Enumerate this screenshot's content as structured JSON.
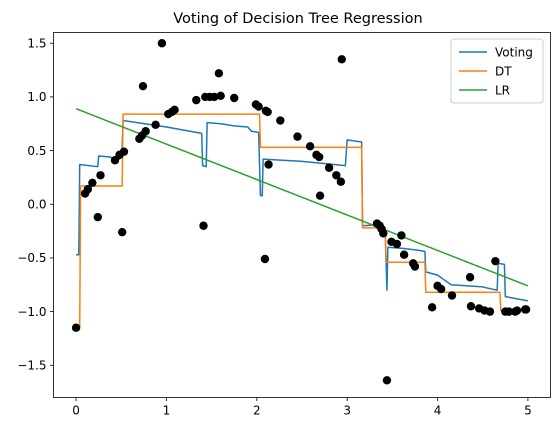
{
  "chart_data": {
    "type": "line",
    "title": "Voting of Decision Tree Regression",
    "xlabel": "",
    "ylabel": "",
    "xlim": [
      -0.25,
      5.25
    ],
    "ylim": [
      -1.8,
      1.6
    ],
    "xticks": [
      0,
      1,
      2,
      3,
      4,
      5
    ],
    "xtick_labels": [
      "0",
      "1",
      "2",
      "3",
      "4",
      "5"
    ],
    "yticks": [
      -1.5,
      -1.0,
      -0.5,
      0.0,
      0.5,
      1.0,
      1.5
    ],
    "ytick_labels": [
      "−1.5",
      "−1.0",
      "−0.5",
      "0.0",
      "0.5",
      "1.0",
      "1.5"
    ],
    "grid": false,
    "legend_position": "top-right",
    "series": [
      {
        "name": "Voting",
        "color": "#1f77b4",
        "points": [
          [
            0.0,
            -0.47
          ],
          [
            0.03,
            -0.47
          ],
          [
            0.04,
            0.37
          ],
          [
            0.24,
            0.35
          ],
          [
            0.25,
            0.45
          ],
          [
            0.38,
            0.44
          ],
          [
            0.4,
            0.43
          ],
          [
            0.48,
            0.42
          ],
          [
            0.51,
            0.53
          ],
          [
            0.52,
            0.78
          ],
          [
            1.0,
            0.72
          ],
          [
            1.39,
            0.66
          ],
          [
            1.4,
            0.36
          ],
          [
            1.44,
            0.35
          ],
          [
            1.45,
            0.76
          ],
          [
            1.6,
            0.75
          ],
          [
            1.75,
            0.73
          ],
          [
            1.9,
            0.72
          ],
          [
            1.94,
            0.68
          ],
          [
            2.02,
            0.67
          ],
          [
            2.04,
            0.08
          ],
          [
            2.06,
            0.08
          ],
          [
            2.07,
            0.42
          ],
          [
            2.5,
            0.4
          ],
          [
            2.98,
            0.36
          ],
          [
            3.0,
            0.6
          ],
          [
            3.16,
            0.58
          ],
          [
            3.17,
            -0.2
          ],
          [
            3.38,
            -0.19
          ],
          [
            3.42,
            -0.22
          ],
          [
            3.44,
            -0.8
          ],
          [
            3.45,
            -0.4
          ],
          [
            3.6,
            -0.41
          ],
          [
            3.8,
            -0.43
          ],
          [
            3.86,
            -0.44
          ],
          [
            3.87,
            -0.63
          ],
          [
            4.0,
            -0.66
          ],
          [
            4.1,
            -0.72
          ],
          [
            4.15,
            -0.75
          ],
          [
            4.5,
            -0.77
          ],
          [
            4.6,
            -0.79
          ],
          [
            4.66,
            -0.8
          ],
          [
            4.67,
            -0.55
          ],
          [
            4.74,
            -0.56
          ],
          [
            4.75,
            -0.86
          ],
          [
            5.0,
            -0.9
          ]
        ]
      },
      {
        "name": "DT",
        "color": "#ff7f0e",
        "points": [
          [
            0.0,
            -1.15
          ],
          [
            0.04,
            -1.15
          ],
          [
            0.05,
            0.17
          ],
          [
            0.51,
            0.17
          ],
          [
            0.52,
            0.84
          ],
          [
            2.03,
            0.84
          ],
          [
            2.04,
            0.53
          ],
          [
            3.16,
            0.53
          ],
          [
            3.17,
            -0.22
          ],
          [
            3.42,
            -0.22
          ],
          [
            3.43,
            -0.54
          ],
          [
            3.86,
            -0.54
          ],
          [
            3.87,
            -0.82
          ],
          [
            4.69,
            -0.82
          ],
          [
            4.7,
            -0.99
          ],
          [
            5.0,
            -0.99
          ]
        ]
      },
      {
        "name": "LR",
        "color": "#2ca02c",
        "points": [
          [
            0.0,
            0.89
          ],
          [
            5.0,
            -0.76
          ]
        ]
      }
    ],
    "scatter": {
      "name": "",
      "color": "#000000",
      "points": [
        [
          0.0,
          -1.15
        ],
        [
          0.1,
          0.1
        ],
        [
          0.13,
          0.14
        ],
        [
          0.18,
          0.2
        ],
        [
          0.24,
          -0.12
        ],
        [
          0.27,
          0.27
        ],
        [
          0.43,
          0.41
        ],
        [
          0.48,
          0.46
        ],
        [
          0.51,
          -0.26
        ],
        [
          0.53,
          0.49
        ],
        [
          0.7,
          0.61
        ],
        [
          0.73,
          0.64
        ],
        [
          0.74,
          1.1
        ],
        [
          0.77,
          0.68
        ],
        [
          0.88,
          0.74
        ],
        [
          0.95,
          1.5
        ],
        [
          1.02,
          0.84
        ],
        [
          1.06,
          0.86
        ],
        [
          1.09,
          0.88
        ],
        [
          1.33,
          0.97
        ],
        [
          1.41,
          -0.2
        ],
        [
          1.43,
          1.0
        ],
        [
          1.48,
          1.0
        ],
        [
          1.53,
          1.0
        ],
        [
          1.58,
          1.22
        ],
        [
          1.6,
          1.01
        ],
        [
          1.75,
          0.99
        ],
        [
          1.99,
          0.93
        ],
        [
          2.02,
          0.91
        ],
        [
          2.09,
          -0.51
        ],
        [
          2.1,
          0.87
        ],
        [
          2.12,
          0.86
        ],
        [
          2.13,
          0.37
        ],
        [
          2.26,
          0.78
        ],
        [
          2.45,
          0.63
        ],
        [
          2.59,
          0.54
        ],
        [
          2.66,
          0.46
        ],
        [
          2.69,
          0.44
        ],
        [
          2.7,
          0.08
        ],
        [
          2.8,
          0.34
        ],
        [
          2.88,
          0.27
        ],
        [
          2.93,
          0.21
        ],
        [
          2.94,
          1.35
        ],
        [
          3.33,
          -0.18
        ],
        [
          3.36,
          -0.2
        ],
        [
          3.38,
          -0.23
        ],
        [
          3.4,
          -0.27
        ],
        [
          3.44,
          -1.64
        ],
        [
          3.49,
          -0.35
        ],
        [
          3.55,
          -0.37
        ],
        [
          3.6,
          -0.29
        ],
        [
          3.63,
          -0.47
        ],
        [
          3.73,
          -0.55
        ],
        [
          3.75,
          -0.58
        ],
        [
          3.94,
          -0.96
        ],
        [
          4.0,
          -0.76
        ],
        [
          4.04,
          -0.79
        ],
        [
          4.16,
          -0.85
        ],
        [
          4.36,
          -0.68
        ],
        [
          4.37,
          -0.95
        ],
        [
          4.46,
          -0.97
        ],
        [
          4.52,
          -0.99
        ],
        [
          4.58,
          -1.0
        ],
        [
          4.64,
          -0.53
        ],
        [
          4.75,
          -1.0
        ],
        [
          4.79,
          -1.0
        ],
        [
          4.86,
          -1.0
        ],
        [
          4.88,
          -0.99
        ],
        [
          4.97,
          -0.98
        ],
        [
          4.98,
          -0.98
        ]
      ]
    }
  }
}
